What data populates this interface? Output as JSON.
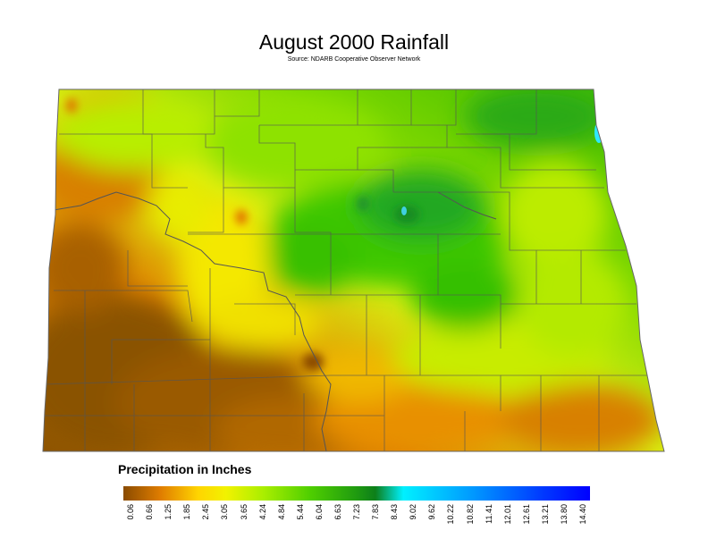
{
  "title": "August 2000 Rainfall",
  "subtitle": "Source: NDARB Cooperative Observer Network",
  "legend": {
    "title": "Precipitation in Inches",
    "ticks": [
      "0.06",
      "0.66",
      "1.25",
      "1.85",
      "2.45",
      "3.05",
      "3.65",
      "4.24",
      "4.84",
      "5.44",
      "6.04",
      "6.63",
      "7.23",
      "7.83",
      "8.43",
      "9.02",
      "9.62",
      "10.22",
      "10.82",
      "11.41",
      "12.01",
      "12.61",
      "13.21",
      "13.80",
      "14.40"
    ],
    "colors": [
      "#8a4b00",
      "#b85a00",
      "#e07d00",
      "#f4a300",
      "#ffd400",
      "#f2f200",
      "#d4f000",
      "#aaee00",
      "#7ee000",
      "#4fcf00",
      "#2fb400",
      "#1f9a10",
      "#0d7f1a",
      "#00c86e",
      "#00f0ff",
      "#00d8ff",
      "#00b8ff",
      "#0098ff",
      "#0078ff",
      "#0058ff",
      "#0038ff",
      "#0020ff",
      "#0008ff",
      "#0000f0",
      "#0000ff"
    ]
  },
  "colors": {
    "dry": "#8a5200",
    "orange": "#e08400",
    "yellow": "#f6f000",
    "lightgreen": "#a8ee10",
    "green": "#3cc800",
    "darkgreen": "#17921a",
    "cyan": "#2ee8ff",
    "boundary": "#555555"
  }
}
